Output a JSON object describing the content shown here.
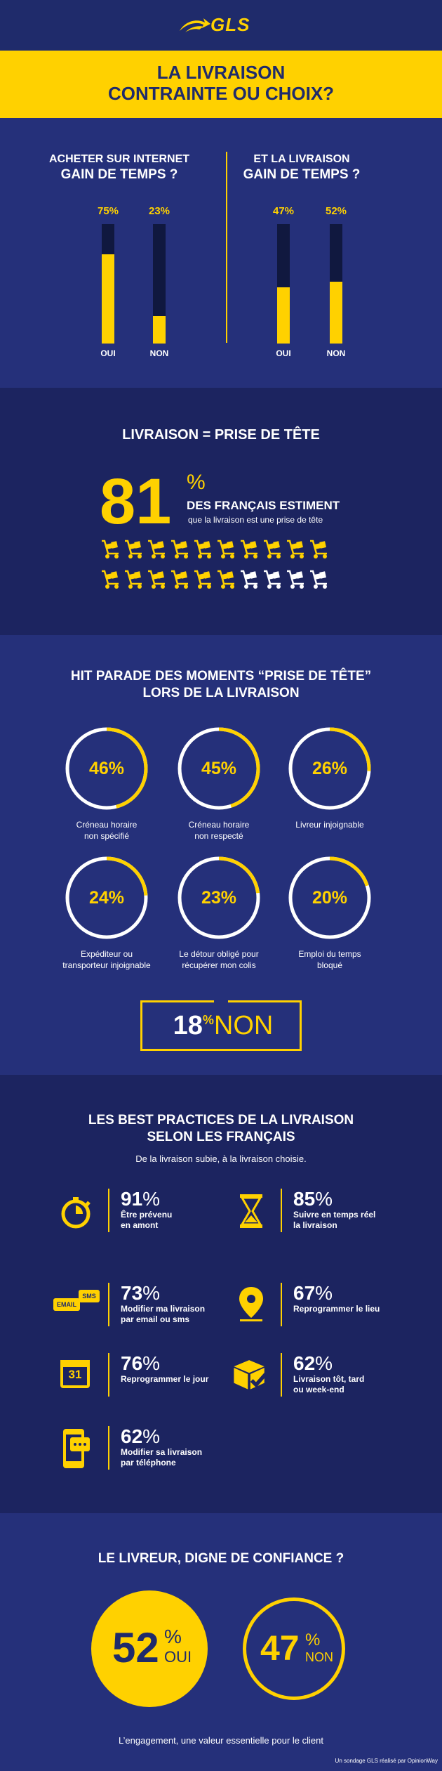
{
  "header": {
    "logo_text": "GLS",
    "title_line1": "LA LIVRAISON",
    "title_line2": "CONTRAINTE OU CHOIX?"
  },
  "survey": {
    "left": {
      "title_line1": "ACHETER SUR INTERNET",
      "title_line2": "GAIN DE TEMPS ?",
      "bars": [
        {
          "label": "OUI",
          "pct_label": "75%",
          "value": 75
        },
        {
          "label": "NON",
          "pct_label": "23%",
          "value": 23
        }
      ]
    },
    "right": {
      "title_line1": "ET LA LIVRAISON",
      "title_line2": "GAIN DE TEMPS ?",
      "bars": [
        {
          "label": "OUI",
          "pct_label": "47%",
          "value": 47
        },
        {
          "label": "NON",
          "pct_label": "52%",
          "value": 52
        }
      ]
    }
  },
  "headache": {
    "title": "LIVRAISON = PRISE DE TÊTE",
    "number": "81",
    "percent": "%",
    "line1": "DES FRANÇAIS ESTIMENT",
    "line2": "que la livraison est une prise de tête",
    "icons_total": 20,
    "icons_highlighted": 16
  },
  "hitparade": {
    "title_line1": "HIT PARADE DES MOMENTS “PRISE DE TÊTE”",
    "title_line2": "LORS DE LA LIVRAISON",
    "items": [
      {
        "pct": "46%",
        "value": 46,
        "label1": "Créneau horaire",
        "label2": "non spécifié"
      },
      {
        "pct": "45%",
        "value": 45,
        "label1": "Créneau horaire",
        "label2": "non respecté"
      },
      {
        "pct": "26%",
        "value": 26,
        "label1": "Livreur injoignable",
        "label2": ""
      },
      {
        "pct": "24%",
        "value": 24,
        "label1": "Expéditeur ou",
        "label2": "transporteur injoignable"
      },
      {
        "pct": "23%",
        "value": 23,
        "label1": "Le détour obligé pour",
        "label2": "récupérer mon colis"
      },
      {
        "pct": "20%",
        "value": 20,
        "label1": "Emploi du temps",
        "label2": "bloqué"
      }
    ],
    "non": {
      "number": "18",
      "percent": "%",
      "text": "NON"
    }
  },
  "best": {
    "title_line1": "LES BEST PRACTICES DE LA LIVRAISON",
    "title_line2": "SELON LES FRANÇAIS",
    "subtitle": "De la livraison subie, à la livraison choisie.",
    "items": [
      {
        "icon": "stopwatch-icon",
        "num": "91",
        "ps": "%",
        "label1": "Être prévenu",
        "label2": "en amont"
      },
      {
        "icon": "hourglass-icon",
        "num": "85",
        "ps": "%",
        "label1": "Suivre en temps réel",
        "label2": "la livraison"
      },
      {
        "icon": "email-sms-icon",
        "num": "73",
        "ps": "%",
        "label1": "Modifier ma livraison",
        "label2": "par email ou sms",
        "email": "EMAIL",
        "sms": "SMS"
      },
      {
        "icon": "location-pin-icon",
        "num": "67",
        "ps": "%",
        "label1": "Reprogrammer le lieu",
        "label2": ""
      },
      {
        "icon": "calendar-icon",
        "num": "76",
        "ps": "%",
        "label1": "Reprogrammer le jour",
        "label2": "",
        "day": "31"
      },
      {
        "icon": "package-check-icon",
        "num": "62",
        "ps": "%",
        "label1": "Livraison tôt, tard",
        "label2": "ou week-end"
      },
      {
        "icon": "phone-chat-icon",
        "num": "62",
        "ps": "%",
        "label1": "Modifier sa livraison",
        "label2": "par téléphone"
      }
    ]
  },
  "trust": {
    "title": "LE LIVREUR, DIGNE DE CONFIANCE ?",
    "yes": {
      "num": "52",
      "ps": "%",
      "label": "OUI"
    },
    "no": {
      "num": "47",
      "ps": "%",
      "label": "NON"
    },
    "footer": "L’engagement, une valeur essentielle pour le client",
    "credit": "Un sondage GLS réalisé par OpinionWay"
  },
  "colors": {
    "navy": "#1f2b6b",
    "yellow": "#ffd100",
    "dark": "#1c2460"
  }
}
